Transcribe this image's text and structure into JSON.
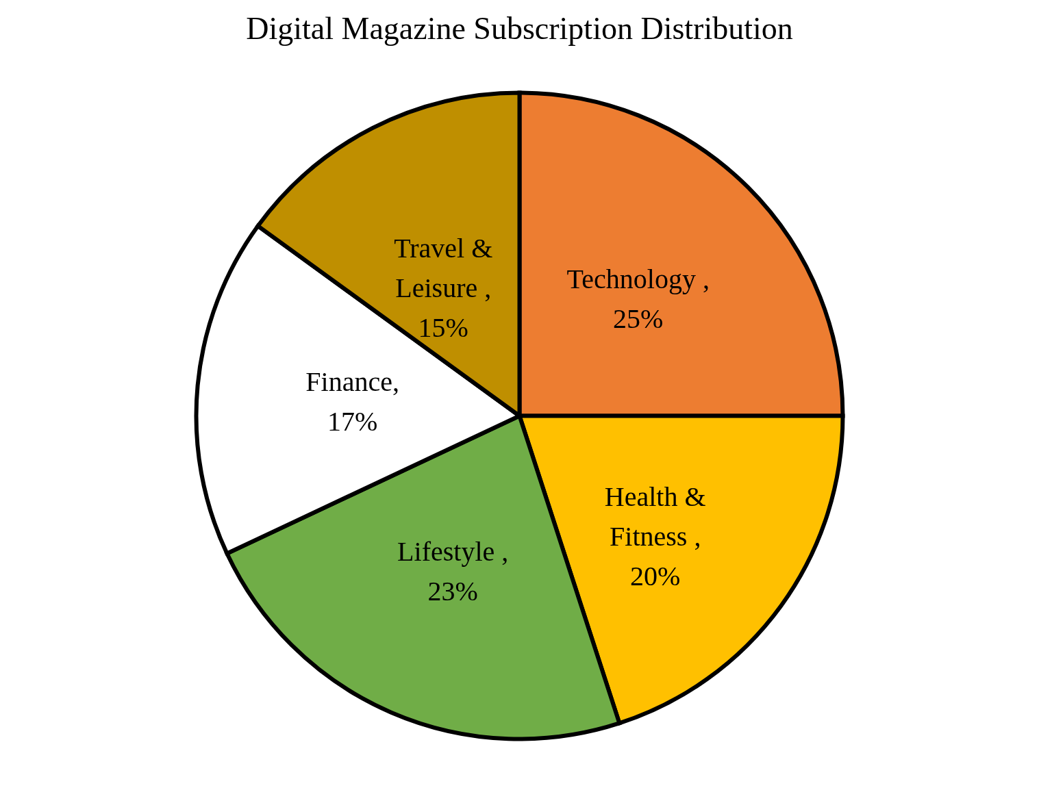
{
  "chart_data": {
    "type": "pie",
    "title": "Digital Magazine Subscription Distribution",
    "categories": [
      "Technology",
      "Health & Fitness",
      "Lifestyle",
      "Finance",
      "Travel & Leisure"
    ],
    "values": [
      25,
      20,
      23,
      17,
      15
    ],
    "colors": [
      "#ed7d31",
      "#ffc000",
      "#70ad47",
      "#ffffff",
      "#bf8f00"
    ],
    "value_labels": [
      " , 25%",
      " , 20%",
      " , 23%",
      ", 17%",
      " , 15%"
    ],
    "legend": false
  }
}
